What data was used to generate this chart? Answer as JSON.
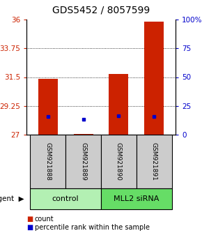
{
  "title": "GDS5452 / 8057599",
  "samples": [
    "GSM921888",
    "GSM921889",
    "GSM921890",
    "GSM921891"
  ],
  "count_values": [
    31.35,
    27.08,
    31.72,
    35.85
  ],
  "percentile_values": [
    28.42,
    28.22,
    28.48,
    28.44
  ],
  "y_min": 27,
  "y_max": 36,
  "y_ticks_left": [
    27,
    29.25,
    31.5,
    33.75,
    36
  ],
  "y_ticks_right": [
    0,
    25,
    50,
    75,
    100
  ],
  "y_ticks_right_labels": [
    "0",
    "25",
    "50",
    "75",
    "100%"
  ],
  "groups": [
    {
      "label": "control",
      "samples": [
        0,
        1
      ],
      "color": "#b3f0b3"
    },
    {
      "label": "MLL2 siRNA",
      "samples": [
        2,
        3
      ],
      "color": "#66dd66"
    }
  ],
  "bar_color": "#cc2200",
  "percentile_color": "#0000cc",
  "bar_width": 0.55,
  "title_fontsize": 10,
  "tick_fontsize": 7.5,
  "legend_fontsize": 7,
  "sample_label_fontsize": 6.5,
  "group_label_fontsize": 8,
  "background_color": "#ffffff",
  "sample_box_color": "#cccccc",
  "left_tick_color": "#cc2200",
  "right_tick_color": "#0000cc"
}
